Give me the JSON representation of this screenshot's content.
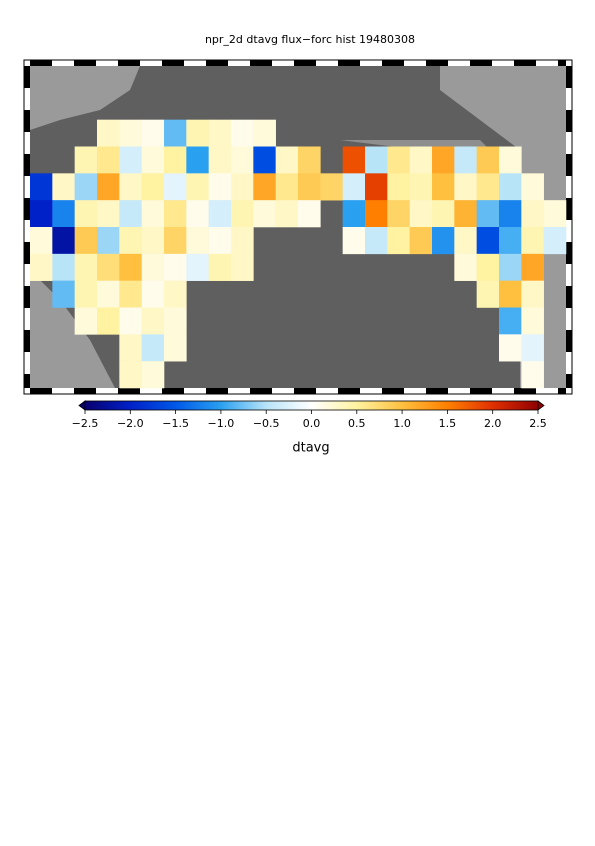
{
  "chart_data": {
    "type": "heatmap",
    "title": "npr_2d dtavg flux−forc hist 19480308",
    "colorbar_label": "dtavg",
    "clim": [
      -2.5,
      2.5
    ],
    "cticks": [
      {
        "value": -2.5,
        "label": "−2.5"
      },
      {
        "value": -2,
        "label": "−2.0"
      },
      {
        "value": -1.5,
        "label": "−1.5"
      },
      {
        "value": -1,
        "label": "−1.0"
      },
      {
        "value": -0.5,
        "label": "−0.5"
      },
      {
        "value": 0,
        "label": "0.0"
      },
      0.5,
      {
        "value": 1,
        "label": "1.0"
      },
      1.5,
      {
        "value": 2,
        "label": "2.0"
      },
      2.5
    ],
    "colormap": [
      "#08006e",
      "#0020c8",
      "#0058e8",
      "#2aa0f0",
      "#b8e4f8",
      "#ffffff",
      "#fff2a0",
      "#ffc040",
      "#ff8000",
      "#e03000",
      "#900000"
    ],
    "values": [
      [
        null,
        null,
        null,
        null,
        null,
        null,
        null,
        null,
        null,
        null,
        null,
        null,
        null,
        null,
        null,
        null,
        null,
        null,
        null,
        null,
        null,
        null,
        null,
        null
      ],
      [
        null,
        null,
        null,
        null,
        null,
        null,
        null,
        null,
        null,
        null,
        null,
        null,
        null,
        null,
        null,
        null,
        null,
        null,
        null,
        null,
        null,
        null,
        null,
        null
      ],
      [
        null,
        null,
        null,
        0.3,
        0.2,
        0.1,
        -0.8,
        0.4,
        0.3,
        0.1,
        0.2,
        null,
        null,
        null,
        null,
        null,
        null,
        null,
        null,
        null,
        null,
        null,
        null,
        null
      ],
      [
        null,
        null,
        0.4,
        0.6,
        -0.3,
        0.2,
        0.5,
        -1.0,
        0.3,
        0.2,
        -1.6,
        0.3,
        0.8,
        null,
        1.8,
        -0.5,
        0.6,
        0.3,
        1.2,
        -0.4,
        0.9,
        0.2,
        null,
        null
      ],
      [
        -1.8,
        0.3,
        -0.6,
        1.2,
        0.3,
        0.5,
        -0.2,
        0.4,
        0.1,
        0.3,
        1.2,
        0.6,
        0.9,
        0.8,
        -0.3,
        1.9,
        0.5,
        0.4,
        1.0,
        0.3,
        0.6,
        -0.5,
        0.2,
        null
      ],
      [
        -2.0,
        -1.2,
        0.4,
        0.3,
        -0.4,
        0.2,
        0.6,
        0.1,
        -0.3,
        0.4,
        0.2,
        0.3,
        0.1,
        null,
        -1.0,
        1.5,
        0.8,
        0.3,
        0.4,
        1.1,
        -0.8,
        -1.2,
        0.3,
        0.2
      ],
      [
        0.2,
        -2.2,
        0.9,
        -0.6,
        0.4,
        0.3,
        0.8,
        0.2,
        0.1,
        0.3,
        null,
        null,
        null,
        null,
        0.1,
        -0.4,
        0.5,
        0.9,
        -1.1,
        0.3,
        -1.6,
        -0.9,
        0.4,
        -0.3
      ],
      [
        0.3,
        -0.5,
        0.4,
        0.7,
        1.0,
        0.2,
        0.1,
        -0.2,
        0.4,
        0.3,
        null,
        null,
        null,
        null,
        null,
        null,
        null,
        null,
        null,
        0.2,
        0.5,
        -0.6,
        1.2,
        null
      ],
      [
        null,
        -0.8,
        0.4,
        0.2,
        0.6,
        0.1,
        0.3,
        null,
        null,
        null,
        null,
        null,
        null,
        null,
        null,
        null,
        null,
        null,
        null,
        null,
        0.4,
        1.0,
        0.3,
        null
      ],
      [
        null,
        null,
        0.2,
        0.5,
        0.1,
        0.3,
        0.2,
        null,
        null,
        null,
        null,
        null,
        null,
        null,
        null,
        null,
        null,
        null,
        null,
        null,
        null,
        -0.9,
        0.2,
        null
      ],
      [
        null,
        null,
        null,
        null,
        0.3,
        -0.4,
        0.2,
        null,
        null,
        null,
        null,
        null,
        null,
        null,
        null,
        null,
        null,
        null,
        null,
        null,
        null,
        0.1,
        -0.2,
        null
      ],
      [
        null,
        null,
        null,
        null,
        0.3,
        0.2,
        null,
        null,
        null,
        null,
        null,
        null,
        null,
        null,
        null,
        null,
        null,
        null,
        null,
        null,
        null,
        null,
        0.1,
        null
      ]
    ]
  }
}
